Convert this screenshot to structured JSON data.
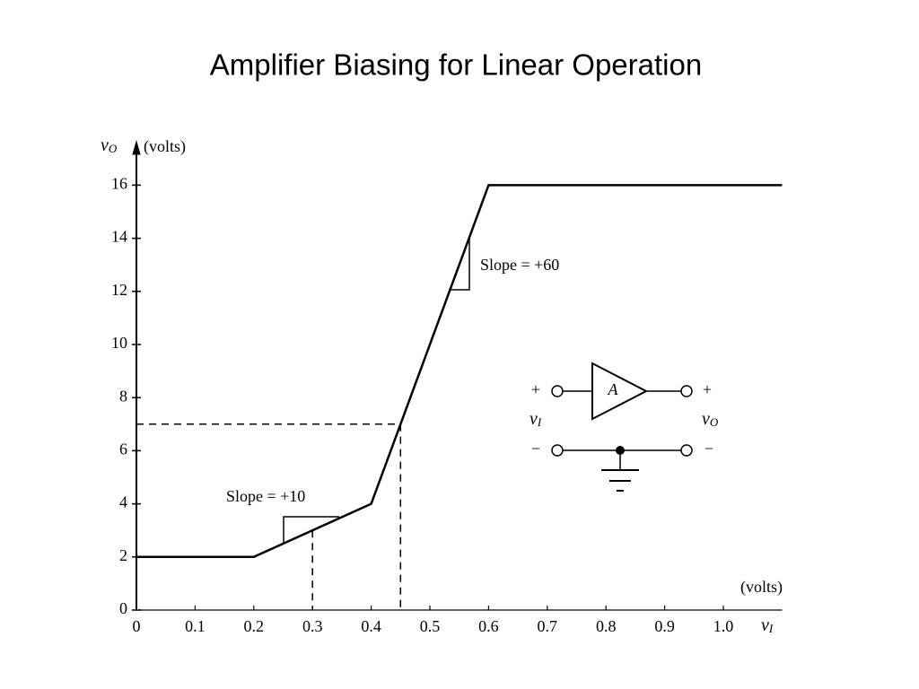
{
  "chart_data": {
    "type": "line",
    "title": "Amplifier Biasing for Linear Operation",
    "y_symbol": {
      "main": "v",
      "sub": "O"
    },
    "y_label": "(volts)",
    "x_symbol": {
      "main": "v",
      "sub": "I"
    },
    "x_label": "(volts)",
    "x": [
      0,
      0.2,
      0.4,
      0.6,
      1.1
    ],
    "values": [
      2,
      2,
      4,
      16,
      16
    ],
    "color": "#000000",
    "xlim": [
      0,
      1.1
    ],
    "ylim": [
      0,
      17
    ],
    "xticks": [
      0,
      0.1,
      0.2,
      0.3,
      0.4,
      0.5,
      0.6,
      0.7,
      0.8,
      0.9,
      {
        "value": 1,
        "label": "1.0"
      }
    ],
    "yticks": [
      0,
      2,
      4,
      6,
      8,
      10,
      12,
      14,
      16
    ],
    "guides": [
      {
        "x": 0.45,
        "y": 7,
        "horizontal": true
      },
      {
        "x": 0.3,
        "y": 3,
        "horizontal": false
      }
    ],
    "annotations": [
      "Slope = +10",
      "Slope = +60"
    ],
    "amplifier": {
      "gain": "A",
      "plus": "+",
      "minus": "−",
      "input": {
        "main": "v",
        "sub": "I"
      },
      "output": {
        "main": "v",
        "sub": "O"
      }
    }
  }
}
